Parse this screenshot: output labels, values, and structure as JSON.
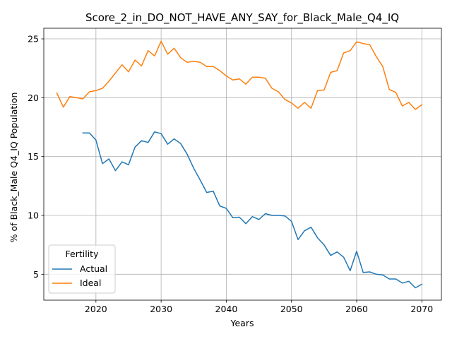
{
  "chart_data": {
    "type": "line",
    "title": "Score_2_in_DO_NOT_HAVE_ANY_SAY_for_Black_Male_Q4_IQ",
    "xlabel": "Years",
    "ylabel": "% of Black_Male Q4_IQ Population",
    "xlim": [
      2012,
      2073
    ],
    "ylim": [
      2.8,
      25.9
    ],
    "xticks": [
      2020,
      2030,
      2040,
      2050,
      2060,
      2070
    ],
    "yticks": [
      5,
      10,
      15,
      20,
      25
    ],
    "grid": true,
    "legend": {
      "title": "Fertility",
      "placement": "lower-left"
    },
    "series": [
      {
        "name": "Actual",
        "color": "#1f77b4",
        "x": [
          2018,
          2019,
          2020,
          2021,
          2022,
          2023,
          2024,
          2025,
          2026,
          2027,
          2028,
          2029,
          2030,
          2031,
          2032,
          2033,
          2034,
          2035,
          2036,
          2037,
          2038,
          2039,
          2040,
          2041,
          2042,
          2043,
          2044,
          2045,
          2046,
          2047,
          2048,
          2049,
          2050,
          2051,
          2052,
          2053,
          2054,
          2055,
          2056,
          2057,
          2058,
          2059,
          2060,
          2061,
          2062,
          2063,
          2064,
          2065,
          2066,
          2067,
          2068,
          2069,
          2070
        ],
        "values": [
          17.0,
          17.0,
          16.4,
          14.4,
          14.8,
          13.8,
          14.55,
          14.3,
          15.8,
          16.35,
          16.2,
          17.1,
          16.95,
          16.05,
          16.5,
          16.1,
          15.2,
          14.0,
          13.0,
          11.95,
          12.05,
          10.8,
          10.6,
          9.8,
          9.85,
          9.3,
          9.9,
          9.65,
          10.15,
          10.0,
          10.0,
          9.95,
          9.5,
          7.95,
          8.7,
          9.0,
          8.1,
          7.5,
          6.6,
          6.9,
          6.45,
          5.3,
          6.95,
          5.15,
          5.2,
          5.0,
          4.95,
          4.6,
          4.6,
          4.25,
          4.4,
          3.85,
          4.15
        ]
      },
      {
        "name": "Ideal",
        "color": "#ff7f0e",
        "x": [
          2014,
          2015,
          2016,
          2017,
          2018,
          2019,
          2020,
          2021,
          2022,
          2023,
          2024,
          2025,
          2026,
          2027,
          2028,
          2029,
          2030,
          2031,
          2032,
          2033,
          2034,
          2035,
          2036,
          2037,
          2038,
          2039,
          2040,
          2041,
          2042,
          2043,
          2044,
          2045,
          2046,
          2047,
          2048,
          2049,
          2050,
          2051,
          2052,
          2053,
          2054,
          2055,
          2056,
          2057,
          2058,
          2059,
          2060,
          2061,
          2062,
          2063,
          2064,
          2065,
          2066,
          2067,
          2068,
          2069,
          2070
        ],
        "values": [
          20.4,
          19.2,
          20.1,
          20.0,
          19.9,
          20.5,
          20.6,
          20.8,
          21.4,
          22.1,
          22.8,
          22.2,
          23.2,
          22.7,
          24.0,
          23.55,
          24.8,
          23.7,
          24.2,
          23.4,
          23.0,
          23.1,
          23.0,
          22.65,
          22.65,
          22.3,
          21.85,
          21.5,
          21.6,
          21.15,
          21.75,
          21.75,
          21.65,
          20.8,
          20.5,
          19.85,
          19.55,
          19.1,
          19.6,
          19.1,
          20.6,
          20.65,
          22.15,
          22.3,
          23.8,
          24.0,
          24.75,
          24.6,
          24.5,
          23.5,
          22.65,
          20.7,
          20.45,
          19.3,
          19.6,
          19.0,
          19.4
        ]
      }
    ]
  }
}
